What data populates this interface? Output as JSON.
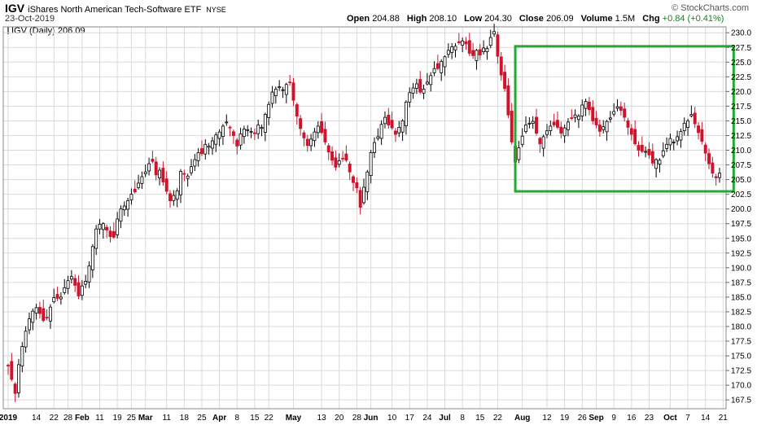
{
  "header": {
    "symbol": "IGV",
    "name": "iShares North American Tech-Software ETF",
    "exchange": "NYSE",
    "date": "23-Oct-2019",
    "credit": "© StockCharts.com",
    "open_label": "Open",
    "open": "204.88",
    "high_label": "High",
    "high": "208.10",
    "low_label": "Low",
    "low": "204.30",
    "close_label": "Close",
    "close": "206.09",
    "volume_label": "Volume",
    "volume": "1.5M",
    "chg_label": "Chg",
    "chg": "+0.84 (+0.41%)",
    "legend": "IGV (Daily) 206.09"
  },
  "colors": {
    "up": "#000000",
    "down": "#d0122b",
    "grid": "#d9d9d9",
    "box": "#22aa33"
  },
  "chart_data": {
    "type": "candlestick",
    "ylim": [
      166,
      231
    ],
    "yticks": [
      167.5,
      170.0,
      172.5,
      175.0,
      177.5,
      180.0,
      182.5,
      185.0,
      187.5,
      190.0,
      192.5,
      195.0,
      197.5,
      200.0,
      202.5,
      205.0,
      207.5,
      210.0,
      212.5,
      215.0,
      217.5,
      220.0,
      222.5,
      225.0,
      227.5,
      230.0
    ],
    "xticks": [
      {
        "label": "2019",
        "bold": true,
        "i": 0
      },
      {
        "label": "14",
        "i": 8
      },
      {
        "label": "22",
        "i": 13
      },
      {
        "label": "28",
        "i": 17
      },
      {
        "label": "Feb",
        "bold": true,
        "i": 21
      },
      {
        "label": "11",
        "i": 26
      },
      {
        "label": "19",
        "i": 31
      },
      {
        "label": "25",
        "i": 35
      },
      {
        "label": "Mar",
        "bold": true,
        "i": 39
      },
      {
        "label": "11",
        "i": 45
      },
      {
        "label": "18",
        "i": 50
      },
      {
        "label": "25",
        "i": 55
      },
      {
        "label": "Apr",
        "bold": true,
        "i": 60
      },
      {
        "label": "8",
        "i": 65
      },
      {
        "label": "15",
        "i": 70
      },
      {
        "label": "22",
        "i": 74
      },
      {
        "label": "May",
        "bold": true,
        "i": 81
      },
      {
        "label": "13",
        "i": 89
      },
      {
        "label": "20",
        "i": 94
      },
      {
        "label": "28",
        "i": 99
      },
      {
        "label": "Jun",
        "bold": true,
        "i": 103
      },
      {
        "label": "10",
        "i": 109
      },
      {
        "label": "17",
        "i": 114
      },
      {
        "label": "24",
        "i": 119
      },
      {
        "label": "Jul",
        "bold": true,
        "i": 124
      },
      {
        "label": "8",
        "i": 129
      },
      {
        "label": "15",
        "i": 134
      },
      {
        "label": "22",
        "i": 139
      },
      {
        "label": "Aug",
        "bold": true,
        "i": 146
      },
      {
        "label": "12",
        "i": 153
      },
      {
        "label": "19",
        "i": 158
      },
      {
        "label": "26",
        "i": 163
      },
      {
        "label": "Sep",
        "bold": true,
        "i": 167
      },
      {
        "label": "9",
        "i": 172
      },
      {
        "label": "16",
        "i": 177
      },
      {
        "label": "23",
        "i": 182
      },
      {
        "label": "Oct",
        "bold": true,
        "i": 188
      },
      {
        "label": "7",
        "i": 193
      },
      {
        "label": "14",
        "i": 198
      },
      {
        "label": "21",
        "i": 203
      }
    ],
    "box": {
      "i0": 144,
      "i1": 206,
      "y0": 203.0,
      "y1": 227.7
    },
    "closes": [
      173.3,
      171.0,
      168.6,
      173.5,
      176.6,
      179.2,
      181.3,
      182.6,
      183.2,
      182.2,
      181.0,
      181.5,
      183.3,
      184.9,
      184.8,
      185.0,
      186.6,
      187.8,
      188.5,
      187.0,
      185.2,
      186.9,
      187.7,
      190.3,
      193.6,
      196.6,
      197.4,
      197.5,
      196.4,
      195.3,
      195.2,
      198.3,
      200.0,
      200.5,
      201.4,
      202.5,
      202.9,
      204.4,
      205.5,
      206.3,
      207.7,
      208.1,
      205.8,
      206.6,
      204.6,
      203.0,
      201.4,
      202.3,
      203.1,
      206.4,
      205.9,
      205.6,
      207.2,
      208.4,
      209.6,
      209.4,
      211.0,
      210.7,
      211.6,
      212.6,
      213.1,
      214.1,
      214.8,
      213.9,
      212.5,
      210.7,
      212.8,
      213.6,
      213.5,
      213.2,
      212.8,
      214.3,
      213.9,
      216.1,
      217.8,
      219.9,
      220.4,
      220.8,
      220.3,
      221.2,
      221.6,
      218.5,
      215.8,
      213.7,
      212.1,
      210.8,
      211.9,
      213.1,
      214.1,
      213.0,
      211.4,
      209.7,
      208.3,
      207.1,
      208.2,
      208.6,
      208.3,
      206.3,
      204.5,
      203.6,
      200.3,
      203.7,
      206.3,
      209.6,
      211.3,
      212.3,
      214.4,
      215.6,
      214.3,
      213.8,
      212.7,
      213.9,
      215.0,
      218.2,
      219.8,
      220.6,
      221.3,
      219.9,
      220.4,
      221.6,
      222.7,
      223.9,
      223.9,
      225.1,
      225.9,
      227.0,
      227.6,
      227.7,
      228.3,
      228.6,
      228.1,
      226.5,
      226.1,
      227.0,
      226.2,
      227.4,
      227.3,
      229.2,
      230.2,
      226.0,
      222.8,
      220.5,
      216.0,
      211.4,
      208.0,
      210.4,
      212.4,
      214.3,
      214.6,
      214.9,
      212.9,
      211.1,
      212.3,
      213.3,
      214.1,
      214.3,
      213.9,
      212.9,
      213.8,
      214.8,
      215.5,
      216.0,
      215.8,
      217.7,
      218.3,
      216.9,
      215.0,
      214.3,
      213.2,
      214.0,
      214.9,
      215.5,
      216.6,
      217.4,
      216.8,
      215.6,
      213.9,
      212.7,
      211.1,
      210.0,
      209.8,
      209.8,
      209.2,
      207.8,
      208.4,
      208.3,
      209.9,
      211.0,
      212.0,
      211.4,
      212.3,
      213.2,
      214.6,
      215.0,
      216.1,
      214.5,
      213.0,
      211.5,
      209.5,
      207.7,
      206.1,
      205.3,
      206.1
    ]
  }
}
